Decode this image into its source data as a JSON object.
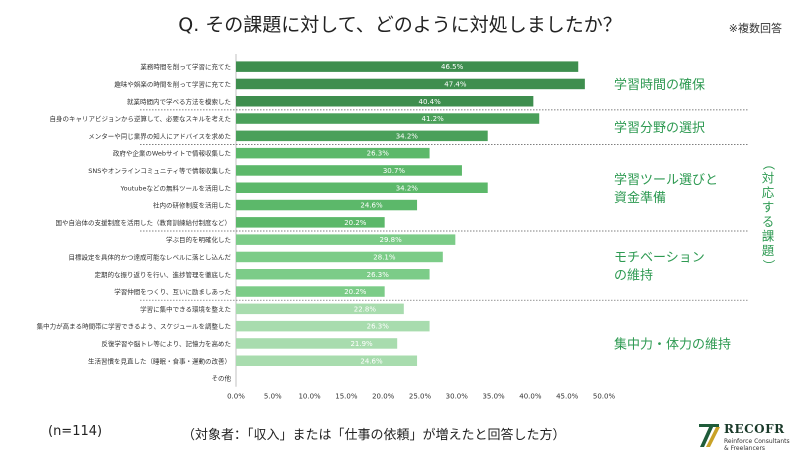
{
  "title": "Q. その課題に対して、どのように対処しましたか？",
  "note": "※複数回答",
  "sample": "(n=114)",
  "footer": "（対象者：「収入」または「仕事の依頼」が増えたと回答した方）",
  "logo": {
    "name": "RECOFR",
    "sub": "Reinforce Consultants & Freelancers"
  },
  "side_label": "（対応する課題）",
  "chart_data": {
    "type": "bar",
    "orientation": "horizontal",
    "title": "Q. その課題に対して、どのように対処しましたか？",
    "xlim": [
      0,
      50
    ],
    "x_ticks": [
      "0.0%",
      "5.0%",
      "10.0%",
      "15.0%",
      "20.0%",
      "25.0%",
      "30.0%",
      "35.0%",
      "40.0%",
      "45.0%",
      "50.0%"
    ],
    "categories": [
      "業務時間を削って学習に充てた",
      "趣味や娯楽の時間を削って学習に充てた",
      "就業時間内で学べる方法を模索した",
      "自身のキャリアビジョンから逆算して、必要なスキルを考えた",
      "メンターや同じ業界の知人にアドバイスを求めた",
      "政府や企業のWebサイトで情報収集した",
      "SNSやオンラインコミュニティ等で情報収集した",
      "Youtubeなどの無料ツールを活用した",
      "社内の研修制度を活用した",
      "国や自治体の支援制度を活用した（教育訓練給付制度など）",
      "学ぶ目的を明確化した",
      "目標設定を具体的かつ達成可能なレベルに落とし込んだ",
      "定期的な振り返りを行い、進捗管理を徹底した",
      "学習仲間をつくり、互いに励ましあった",
      "学習に集中できる環境を整えた",
      "集中力が高まる時間帯に学習できるよう、スケジュールを調整した",
      "反復学習や脳トレ等により、記憶力を高めた",
      "生活習慣を見直した（睡眠・食事・運動の改善）",
      "その他"
    ],
    "values": [
      46.5,
      47.4,
      40.4,
      41.2,
      34.2,
      26.3,
      30.7,
      34.2,
      24.6,
      20.2,
      29.8,
      28.1,
      26.3,
      20.2,
      22.8,
      26.3,
      21.9,
      24.6,
      0
    ],
    "value_labels": [
      "46.5%",
      "47.4%",
      "40.4%",
      "41.2%",
      "34.2%",
      "26.3%",
      "30.7%",
      "34.2%",
      "24.6%",
      "20.2%",
      "29.8%",
      "28.1%",
      "26.3%",
      "20.2%",
      "22.8%",
      "26.3%",
      "21.9%",
      "24.6%",
      ""
    ],
    "groups": [
      {
        "name": "学習時間の確保",
        "lines": [
          "学習時間の確保"
        ],
        "start": 0,
        "end": 2,
        "color": "#3e8e4e"
      },
      {
        "name": "学習分野の選択",
        "lines": [
          "学習分野の選択"
        ],
        "start": 3,
        "end": 4,
        "color": "#4aa05a"
      },
      {
        "name": "学習ツール選びと資金準備",
        "lines": [
          "学習ツール選びと",
          "資金準備"
        ],
        "start": 5,
        "end": 9,
        "color": "#5cb86a"
      },
      {
        "name": "モチベーションの維持",
        "lines": [
          "モチベーション",
          "の維持"
        ],
        "start": 10,
        "end": 13,
        "color": "#7ccc88"
      },
      {
        "name": "集中力・体力の維持",
        "lines": [
          "集中力・体力の維持"
        ],
        "start": 14,
        "end": 18,
        "color": "#a8dcae"
      }
    ]
  }
}
